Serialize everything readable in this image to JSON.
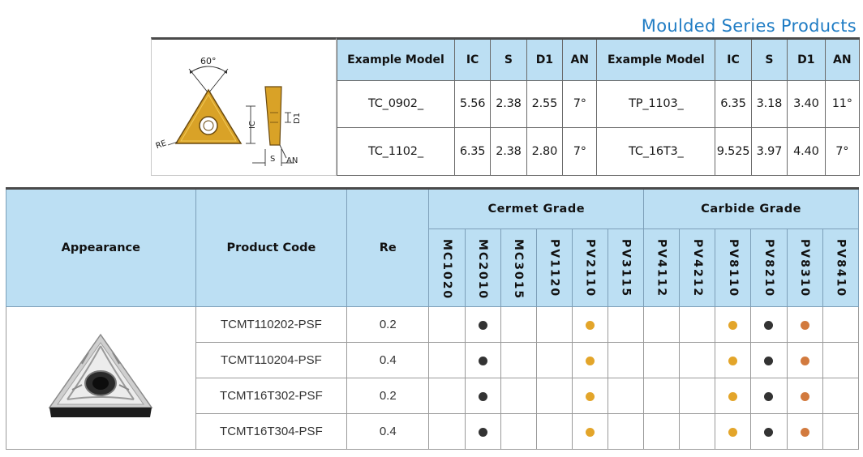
{
  "series_title": "Moulded Series Products",
  "diagram": {
    "angle": "60°",
    "ic": "IC",
    "re": "RE",
    "s": "S",
    "d1": "D1",
    "an": "AN"
  },
  "spec_table": {
    "headers": [
      "Example Model",
      "IC",
      "S",
      "D1",
      "AN",
      "Example Model",
      "IC",
      "S",
      "D1",
      "AN"
    ],
    "rows": [
      [
        "TC_0902_",
        "5.56",
        "2.38",
        "2.55",
        "7°",
        "TP_1103_",
        "6.35",
        "3.18",
        "3.40",
        "11°"
      ],
      [
        "TC_1102_",
        "6.35",
        "2.38",
        "2.80",
        "7°",
        "TC_16T3_",
        "9.525",
        "3.97",
        "4.40",
        "7°"
      ]
    ]
  },
  "main_table": {
    "headers": {
      "appearance": "Appearance",
      "product_code": "Product Code",
      "re": "Re",
      "cermet_group": "Cermet Grade",
      "carbide_group": "Carbide Grade"
    },
    "cermet_grades": [
      "MC1020",
      "MC2010",
      "MC3015",
      "PV1120",
      "PV2110",
      "PV3115"
    ],
    "carbide_grades": [
      "PV4112",
      "PV4212",
      "PV8110",
      "PV8210",
      "PV8310",
      "PV8410"
    ],
    "dot_colors": {
      "black": "#333333",
      "gold": "#e3a52a",
      "copper": "#d27a3e"
    },
    "rows": [
      {
        "code": "TCMT110202-PSF",
        "re": "0.2",
        "grades": [
          "",
          "black",
          "",
          "",
          "gold",
          "",
          "",
          "",
          "gold",
          "black",
          "copper",
          ""
        ]
      },
      {
        "code": "TCMT110204-PSF",
        "re": "0.4",
        "grades": [
          "",
          "black",
          "",
          "",
          "gold",
          "",
          "",
          "",
          "gold",
          "black",
          "copper",
          ""
        ]
      },
      {
        "code": "TCMT16T302-PSF",
        "re": "0.2",
        "grades": [
          "",
          "black",
          "",
          "",
          "gold",
          "",
          "",
          "",
          "gold",
          "black",
          "copper",
          ""
        ]
      },
      {
        "code": "TCMT16T304-PSF",
        "re": "0.4",
        "grades": [
          "",
          "black",
          "",
          "",
          "gold",
          "",
          "",
          "",
          "gold",
          "black",
          "copper",
          ""
        ]
      }
    ]
  }
}
